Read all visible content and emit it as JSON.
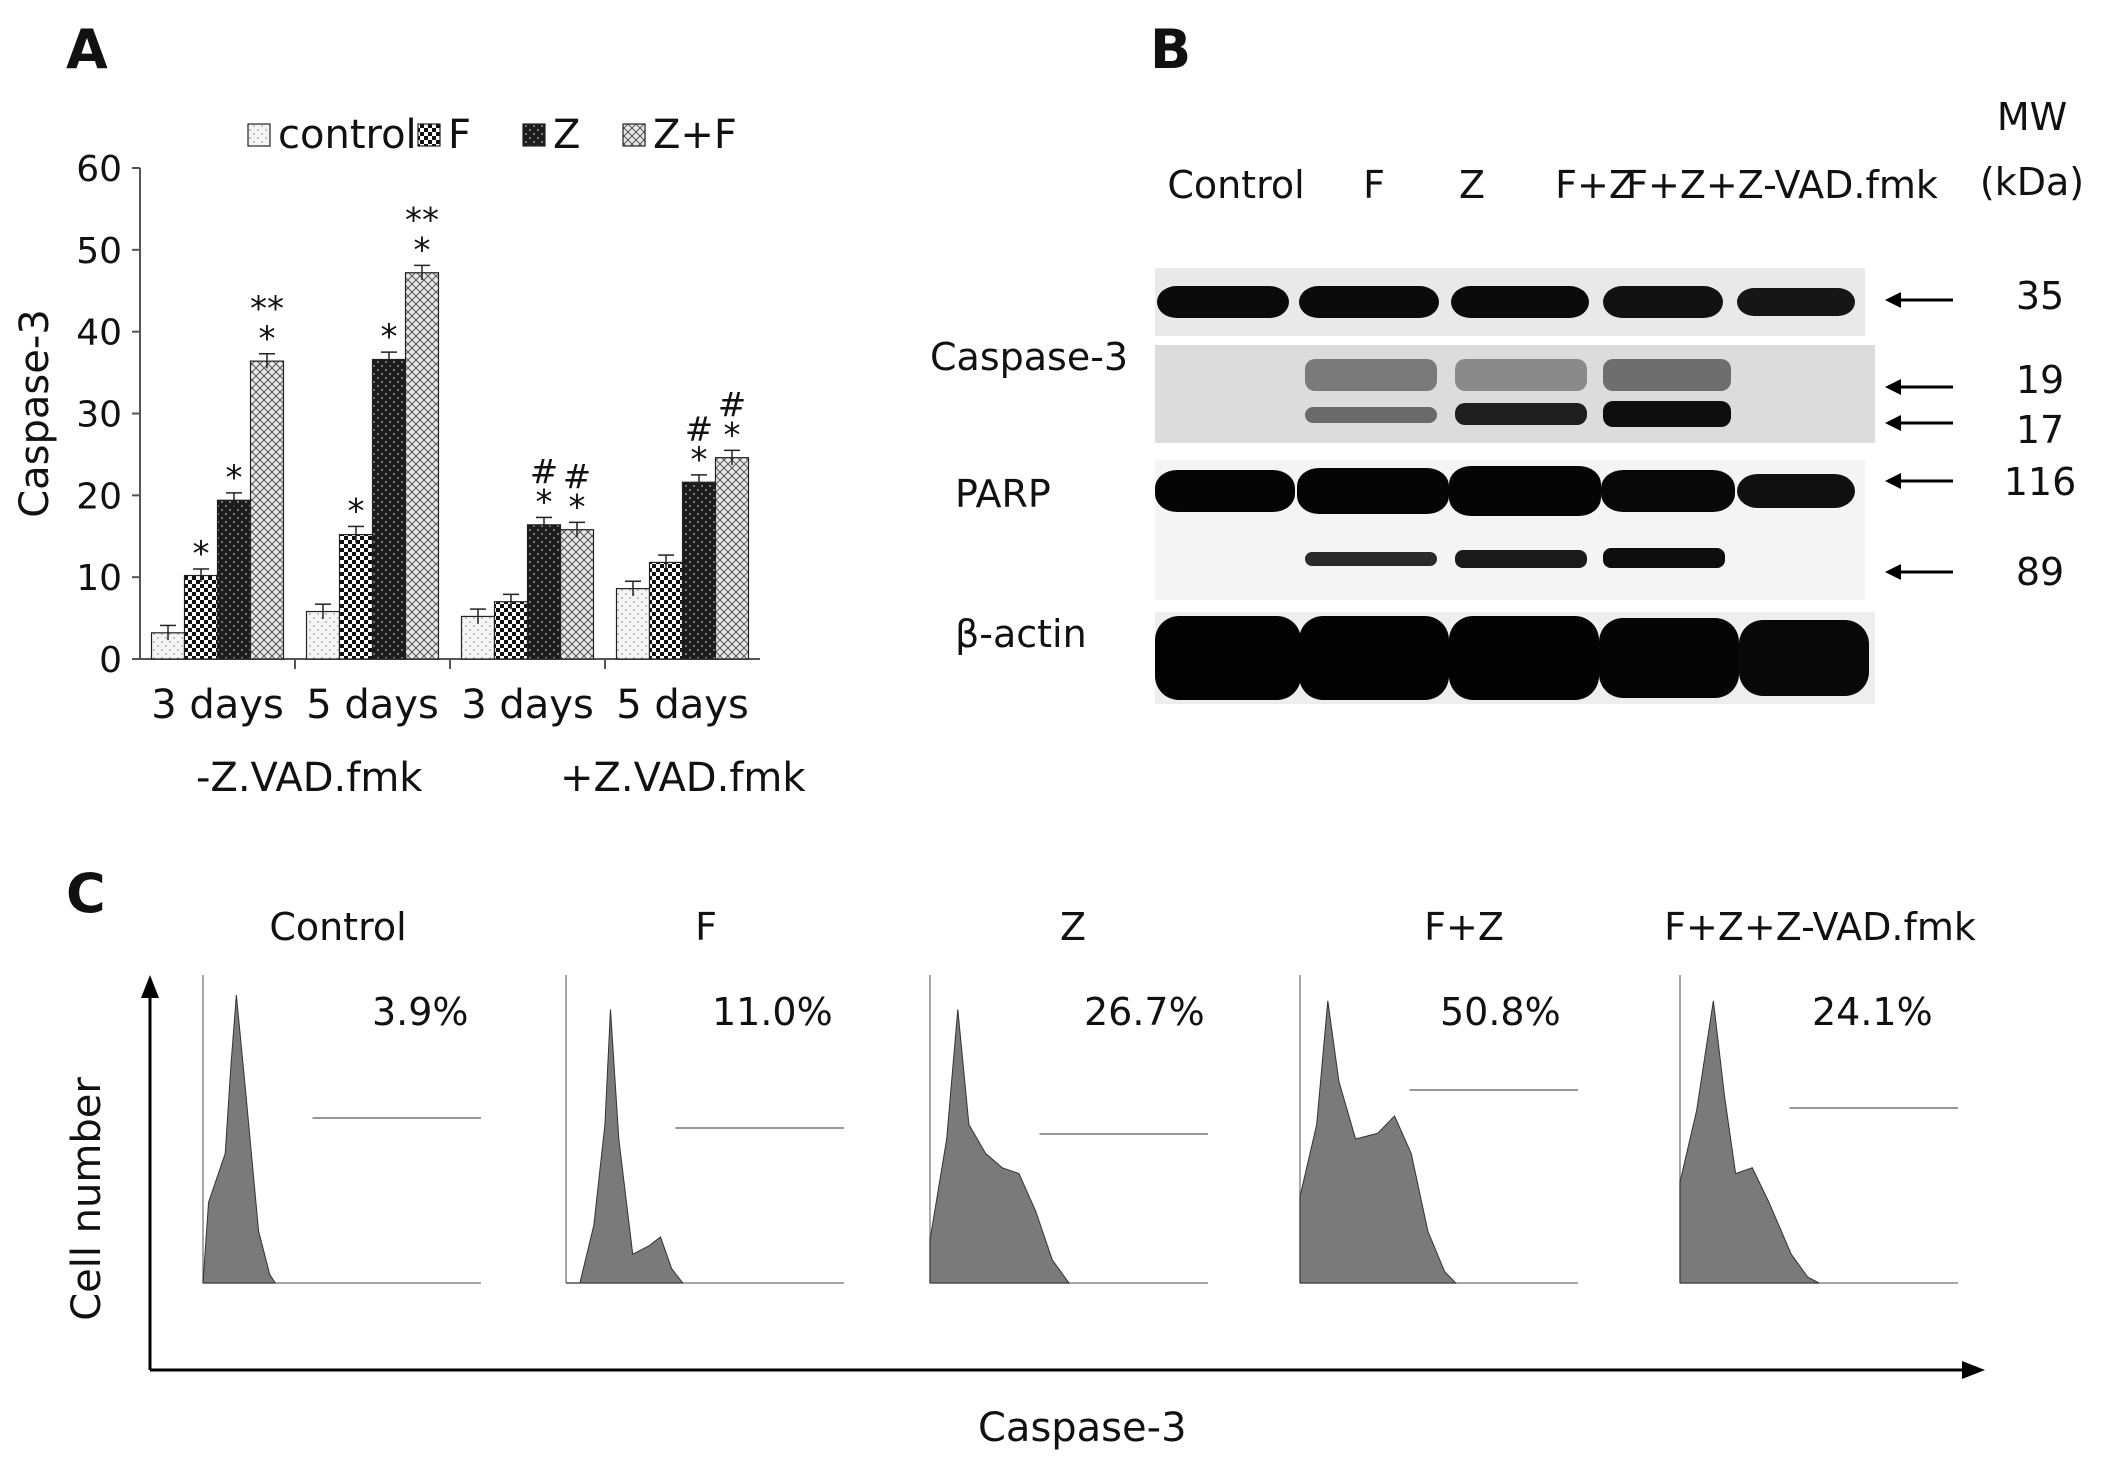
{
  "panels": {
    "a_label": "A",
    "b_label": "B",
    "c_label": "C"
  },
  "chart_data": [
    {
      "type": "bar",
      "panel": "A",
      "ylabel": "Caspase-3",
      "ylim": [
        0,
        60
      ],
      "yticks": [
        0,
        10,
        20,
        30,
        40,
        50,
        60
      ],
      "categories": [
        "3 days",
        "5 days",
        "3 days",
        "5 days"
      ],
      "groups": [
        "-Z.VAD.fmk",
        "+Z.VAD.fmk"
      ],
      "legend_position": "top",
      "series": [
        {
          "name": "control",
          "values": [
            3.2,
            5.8,
            5.2,
            8.6
          ],
          "errors": [
            0.9,
            0.9,
            0.9,
            0.9
          ],
          "annotations": [
            "",
            "",
            "",
            ""
          ]
        },
        {
          "name": "F",
          "values": [
            10.2,
            15.2,
            7.0,
            11.8
          ],
          "errors": [
            0.8,
            1.0,
            0.9,
            0.9
          ],
          "annotations": [
            "*",
            "*",
            "",
            ""
          ]
        },
        {
          "name": "Z",
          "values": [
            19.4,
            36.6,
            16.4,
            21.6
          ],
          "errors": [
            0.9,
            0.9,
            0.9,
            0.9
          ],
          "annotations": [
            "*",
            "*",
            "#\n*",
            "#\n*"
          ]
        },
        {
          "name": "Z+F",
          "values": [
            36.4,
            47.2,
            15.8,
            24.6
          ],
          "errors": [
            0.9,
            0.9,
            0.9,
            0.9
          ],
          "annotations": [
            "**\n*",
            "**\n*",
            "#\n*",
            "#\n*"
          ]
        }
      ],
      "colors": {
        "control": "#f2f2f2",
        "F": "#1a1a1a",
        "Z": "#3a3a3a",
        "Z+F": "#cfcfcf"
      }
    },
    {
      "type": "histogram",
      "panel": "C",
      "xlabel": "Caspase-3",
      "ylabel": "Cell number",
      "plots": [
        {
          "title": "Control",
          "percent": "3.9%"
        },
        {
          "title": "F",
          "percent": "11.0%"
        },
        {
          "title": "Z",
          "percent": "26.7%"
        },
        {
          "title": "F+Z",
          "percent": "50.8%"
        },
        {
          "title": "F+Z+Z-VAD.fmk",
          "percent": "24.1%"
        }
      ]
    }
  ],
  "blot": {
    "lanes": [
      "Control",
      "F",
      "Z",
      "F+Z",
      "F+Z+Z-VAD.fmk"
    ],
    "mw_header_1": "MW",
    "mw_header_2": "(kDa)",
    "proteins": {
      "caspase": "Caspase-3",
      "parp": "PARP",
      "actin": "β-actin"
    },
    "mw": {
      "m35": "35",
      "m19": "19",
      "m17": "17",
      "m116": "116",
      "m89": "89"
    }
  }
}
